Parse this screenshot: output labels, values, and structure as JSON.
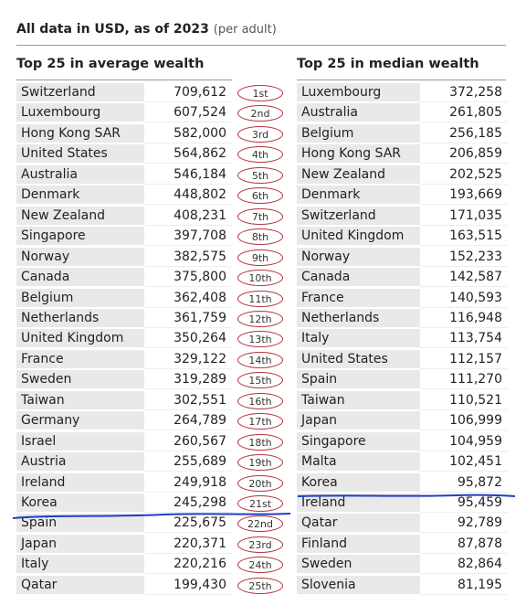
{
  "header": {
    "title": "All data in USD, as of 2023",
    "subtitle": "(per adult)"
  },
  "average": {
    "title": "Top 25 in average wealth",
    "rows": [
      [
        "Switzerland",
        "709,612"
      ],
      [
        "Luxembourg",
        "607,524"
      ],
      [
        "Hong Kong SAR",
        "582,000"
      ],
      [
        "United States",
        "564,862"
      ],
      [
        "Australia",
        "546,184"
      ],
      [
        "Denmark",
        "448,802"
      ],
      [
        "New Zealand",
        "408,231"
      ],
      [
        "Singapore",
        "397,708"
      ],
      [
        "Norway",
        "382,575"
      ],
      [
        "Canada",
        "375,800"
      ],
      [
        "Belgium",
        "362,408"
      ],
      [
        "Netherlands",
        "361,759"
      ],
      [
        "United Kingdom",
        "350,264"
      ],
      [
        "France",
        "329,122"
      ],
      [
        "Sweden",
        "319,289"
      ],
      [
        "Taiwan",
        "302,551"
      ],
      [
        "Germany",
        "264,789"
      ],
      [
        "Israel",
        "260,567"
      ],
      [
        "Austria",
        "255,689"
      ],
      [
        "Ireland",
        "249,918"
      ],
      [
        "Korea",
        "245,298"
      ],
      [
        "Spain",
        "225,675"
      ],
      [
        "Japan",
        "220,371"
      ],
      [
        "Italy",
        "220,216"
      ],
      [
        "Qatar",
        "199,430"
      ]
    ]
  },
  "ranks": [
    "1st",
    "2nd",
    "3rd",
    "4th",
    "5th",
    "6th",
    "7th",
    "8th",
    "9th",
    "10th",
    "11th",
    "12th",
    "13th",
    "14th",
    "15th",
    "16th",
    "17th",
    "18th",
    "19th",
    "20th",
    "21st",
    "22nd",
    "23rd",
    "24th",
    "25th"
  ],
  "median": {
    "title": "Top 25 in median wealth",
    "rows": [
      [
        "Luxembourg",
        "372,258"
      ],
      [
        "Australia",
        "261,805"
      ],
      [
        "Belgium",
        "256,185"
      ],
      [
        "Hong Kong SAR",
        "206,859"
      ],
      [
        "New Zealand",
        "202,525"
      ],
      [
        "Denmark",
        "193,669"
      ],
      [
        "Switzerland",
        "171,035"
      ],
      [
        "United Kingdom",
        "163,515"
      ],
      [
        "Norway",
        "152,233"
      ],
      [
        "Canada",
        "142,587"
      ],
      [
        "France",
        "140,593"
      ],
      [
        "Netherlands",
        "116,948"
      ],
      [
        "Italy",
        "113,754"
      ],
      [
        "United States",
        "112,157"
      ],
      [
        "Spain",
        "111,270"
      ],
      [
        "Taiwan",
        "110,521"
      ],
      [
        "Japan",
        "106,999"
      ],
      [
        "Singapore",
        "104,959"
      ],
      [
        "Malta",
        "102,451"
      ],
      [
        "Korea",
        "95,872"
      ],
      [
        "Ireland",
        "95,459"
      ],
      [
        "Qatar",
        "92,789"
      ],
      [
        "Finland",
        "87,878"
      ],
      [
        "Sweden",
        "82,864"
      ],
      [
        "Slovenia",
        "81,195"
      ]
    ]
  }
}
